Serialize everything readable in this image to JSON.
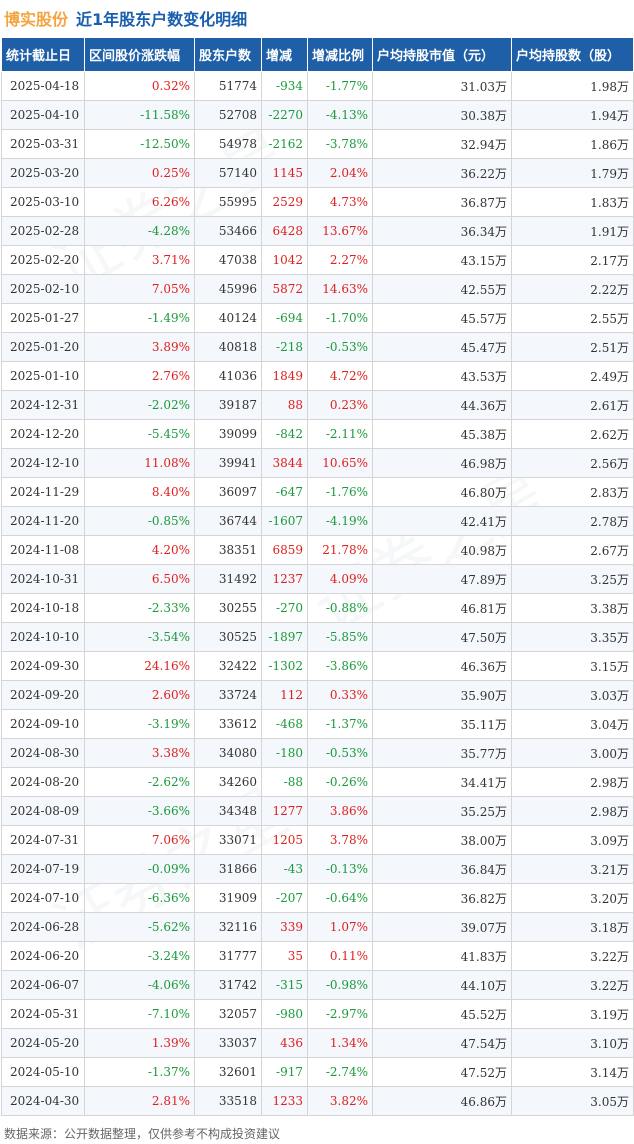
{
  "header": {
    "company": "博实股份",
    "title": "近1年股东户数变化明细"
  },
  "table": {
    "columns": [
      "统计截止日",
      "区间股价涨跌幅",
      "股东户数",
      "增减",
      "增减比例",
      "户均持股市值（元）",
      "户均持股数（股）"
    ],
    "rows": [
      [
        "2025-04-18",
        "0.32%",
        "51774",
        "-934",
        "-1.77%",
        "31.03万",
        "1.98万"
      ],
      [
        "2025-04-10",
        "-11.58%",
        "52708",
        "-2270",
        "-4.13%",
        "30.38万",
        "1.94万"
      ],
      [
        "2025-03-31",
        "-12.50%",
        "54978",
        "-2162",
        "-3.78%",
        "32.94万",
        "1.86万"
      ],
      [
        "2025-03-20",
        "0.25%",
        "57140",
        "1145",
        "2.04%",
        "36.22万",
        "1.79万"
      ],
      [
        "2025-03-10",
        "6.26%",
        "55995",
        "2529",
        "4.73%",
        "36.87万",
        "1.83万"
      ],
      [
        "2025-02-28",
        "-4.28%",
        "53466",
        "6428",
        "13.67%",
        "36.34万",
        "1.91万"
      ],
      [
        "2025-02-20",
        "3.71%",
        "47038",
        "1042",
        "2.27%",
        "43.15万",
        "2.17万"
      ],
      [
        "2025-02-10",
        "7.05%",
        "45996",
        "5872",
        "14.63%",
        "42.55万",
        "2.22万"
      ],
      [
        "2025-01-27",
        "-1.49%",
        "40124",
        "-694",
        "-1.70%",
        "45.57万",
        "2.55万"
      ],
      [
        "2025-01-20",
        "3.89%",
        "40818",
        "-218",
        "-0.53%",
        "45.47万",
        "2.51万"
      ],
      [
        "2025-01-10",
        "2.76%",
        "41036",
        "1849",
        "4.72%",
        "43.53万",
        "2.49万"
      ],
      [
        "2024-12-31",
        "-2.02%",
        "39187",
        "88",
        "0.23%",
        "44.36万",
        "2.61万"
      ],
      [
        "2024-12-20",
        "-5.45%",
        "39099",
        "-842",
        "-2.11%",
        "45.38万",
        "2.62万"
      ],
      [
        "2024-12-10",
        "11.08%",
        "39941",
        "3844",
        "10.65%",
        "46.98万",
        "2.56万"
      ],
      [
        "2024-11-29",
        "8.40%",
        "36097",
        "-647",
        "-1.76%",
        "46.80万",
        "2.83万"
      ],
      [
        "2024-11-20",
        "-0.85%",
        "36744",
        "-1607",
        "-4.19%",
        "42.41万",
        "2.78万"
      ],
      [
        "2024-11-08",
        "4.20%",
        "38351",
        "6859",
        "21.78%",
        "40.98万",
        "2.67万"
      ],
      [
        "2024-10-31",
        "6.50%",
        "31492",
        "1237",
        "4.09%",
        "47.89万",
        "3.25万"
      ],
      [
        "2024-10-18",
        "-2.33%",
        "30255",
        "-270",
        "-0.88%",
        "46.81万",
        "3.38万"
      ],
      [
        "2024-10-10",
        "-3.54%",
        "30525",
        "-1897",
        "-5.85%",
        "47.50万",
        "3.35万"
      ],
      [
        "2024-09-30",
        "24.16%",
        "32422",
        "-1302",
        "-3.86%",
        "46.36万",
        "3.15万"
      ],
      [
        "2024-09-20",
        "2.60%",
        "33724",
        "112",
        "0.33%",
        "35.90万",
        "3.03万"
      ],
      [
        "2024-09-10",
        "-3.19%",
        "33612",
        "-468",
        "-1.37%",
        "35.11万",
        "3.04万"
      ],
      [
        "2024-08-30",
        "3.38%",
        "34080",
        "-180",
        "-0.53%",
        "35.77万",
        "3.00万"
      ],
      [
        "2024-08-20",
        "-2.62%",
        "34260",
        "-88",
        "-0.26%",
        "34.41万",
        "2.98万"
      ],
      [
        "2024-08-09",
        "-3.66%",
        "34348",
        "1277",
        "3.86%",
        "35.25万",
        "2.98万"
      ],
      [
        "2024-07-31",
        "7.06%",
        "33071",
        "1205",
        "3.78%",
        "38.00万",
        "3.09万"
      ],
      [
        "2024-07-19",
        "-0.09%",
        "31866",
        "-43",
        "-0.13%",
        "36.84万",
        "3.21万"
      ],
      [
        "2024-07-10",
        "-6.36%",
        "31909",
        "-207",
        "-0.64%",
        "36.82万",
        "3.20万"
      ],
      [
        "2024-06-28",
        "-5.62%",
        "32116",
        "339",
        "1.07%",
        "39.07万",
        "3.18万"
      ],
      [
        "2024-06-20",
        "-3.24%",
        "31777",
        "35",
        "0.11%",
        "41.83万",
        "3.22万"
      ],
      [
        "2024-06-07",
        "-4.06%",
        "31742",
        "-315",
        "-0.98%",
        "44.10万",
        "3.22万"
      ],
      [
        "2024-05-31",
        "-7.10%",
        "32057",
        "-980",
        "-2.97%",
        "45.52万",
        "3.19万"
      ],
      [
        "2024-05-20",
        "1.39%",
        "33037",
        "436",
        "1.34%",
        "47.54万",
        "3.10万"
      ],
      [
        "2024-05-10",
        "-1.37%",
        "32601",
        "-917",
        "-2.74%",
        "47.52万",
        "3.14万"
      ],
      [
        "2024-04-30",
        "2.81%",
        "33518",
        "1233",
        "3.82%",
        "46.86万",
        "3.05万"
      ]
    ]
  },
  "footer": {
    "source": "数据来源：公开数据整理，仅供参考不构成投资建议"
  },
  "colors": {
    "header_bg": "#1e5fa8",
    "up": "#e0201e",
    "down": "#1a9a3a",
    "company": "#f2a540",
    "title": "#1a5fae"
  },
  "watermark": {
    "text": "证券之星"
  }
}
